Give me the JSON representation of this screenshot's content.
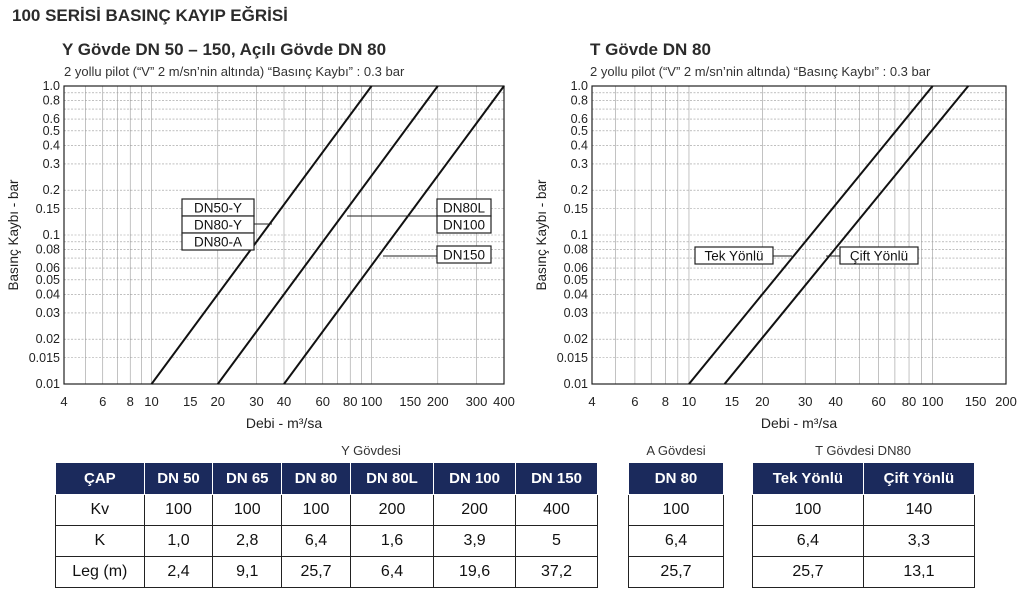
{
  "main_title": "100 SERİSİ BASINÇ KAYIP EĞRİSİ",
  "left_chart": {
    "title": "Y Gövde DN 50 – 150, Açılı Gövde DN 80",
    "subtitle": "2 yollu pilot (“V” 2 m/sn’nin altında) “Basınç Kaybı” : 0.3 bar"
  },
  "right_chart": {
    "title": "T Gövde DN 80",
    "subtitle": "2 yollu pilot (“V” 2 m/sn’nin altında) “Basınç Kaybı” : 0.3 bar"
  },
  "chart_data": [
    {
      "type": "line",
      "title": "Y Gövde DN 50 – 150, Açılı Gövde DN 80",
      "xlabel": "Debi - m³/sa",
      "ylabel": "Basınç Kaybı - bar",
      "xscale": "log",
      "yscale": "log",
      "xlim": [
        4,
        400
      ],
      "ylim": [
        0.01,
        1.0
      ],
      "x_ticks": [
        "4",
        "6",
        "8",
        "10",
        "15",
        "20",
        "30",
        "40",
        "60",
        "80",
        "100",
        "150",
        "200",
        "300",
        "400"
      ],
      "y_ticks": [
        "0.01",
        "0.015",
        "0.02",
        "0.03",
        "0.04",
        "0.05",
        "0.06",
        "0.08",
        "0.1",
        "0.15",
        "0.2",
        "0.3",
        "0.4",
        "0.5",
        "0.6",
        "0.8",
        "1.0"
      ],
      "grid": true,
      "series": [
        {
          "labels": [
            "DN50-Y",
            "DN80-Y",
            "DN80-A"
          ],
          "kv": 100,
          "x": [
            10,
            100
          ],
          "y": [
            0.01,
            1.0
          ]
        },
        {
          "labels": [
            "DN80L",
            "DN100"
          ],
          "kv": 200,
          "x": [
            20,
            200
          ],
          "y": [
            0.01,
            1.0
          ]
        },
        {
          "labels": [
            "DN150"
          ],
          "kv": 400,
          "x": [
            40,
            400
          ],
          "y": [
            0.01,
            1.0
          ]
        }
      ]
    },
    {
      "type": "line",
      "title": "T Gövde DN 80",
      "xlabel": "Debi - m³/sa",
      "ylabel": "Basınç Kaybı - bar",
      "xscale": "log",
      "yscale": "log",
      "xlim": [
        4,
        200
      ],
      "ylim": [
        0.01,
        1.0
      ],
      "x_ticks": [
        "4",
        "6",
        "8",
        "10",
        "15",
        "20",
        "30",
        "40",
        "60",
        "80",
        "100",
        "150",
        "200"
      ],
      "y_ticks": [
        "0.01",
        "0.015",
        "0.02",
        "0.03",
        "0.04",
        "0.05",
        "0.06",
        "0.08",
        "0.1",
        "0.15",
        "0.2",
        "0.3",
        "0.4",
        "0.5",
        "0.6",
        "0.8",
        "1.0"
      ],
      "grid": true,
      "series": [
        {
          "labels": [
            "Tek Yönlü"
          ],
          "kv": 100,
          "x": [
            10,
            100
          ],
          "y": [
            0.01,
            1.0
          ]
        },
        {
          "labels": [
            "Çift Yönlü"
          ],
          "kv": 140,
          "x": [
            14,
            140
          ],
          "y": [
            0.01,
            1.0
          ]
        }
      ]
    },
    {
      "type": "table",
      "group_label": "Y Gövdesi",
      "header": [
        "ÇAP",
        "DN 50",
        "DN 65",
        "DN 80",
        "DN 80L",
        "DN 100",
        "DN 150"
      ],
      "rows": [
        [
          "Kv",
          "100",
          "100",
          "100",
          "200",
          "200",
          "400"
        ],
        [
          "K",
          "1,0",
          "2,8",
          "6,4",
          "1,6",
          "3,9",
          "5"
        ],
        [
          "Leg (m)",
          "2,4",
          "9,1",
          "25,7",
          "6,4",
          "19,6",
          "37,2"
        ]
      ]
    },
    {
      "type": "table",
      "group_label": "A Gövdesi",
      "header": [
        "DN 80"
      ],
      "rows": [
        [
          "100"
        ],
        [
          "6,4"
        ],
        [
          "25,7"
        ]
      ]
    },
    {
      "type": "table",
      "group_label": "T Gövdesi DN80",
      "header": [
        "Tek Yönlü",
        "Çift Yönlü"
      ],
      "rows": [
        [
          "100",
          "140"
        ],
        [
          "6,4",
          "3,3"
        ],
        [
          "25,7",
          "13,1"
        ]
      ]
    }
  ],
  "colors": {
    "table_header_bg": "#1b2a5c",
    "table_header_text": "#ffffff",
    "line": "#111111",
    "grid": "#9a9a9a"
  }
}
